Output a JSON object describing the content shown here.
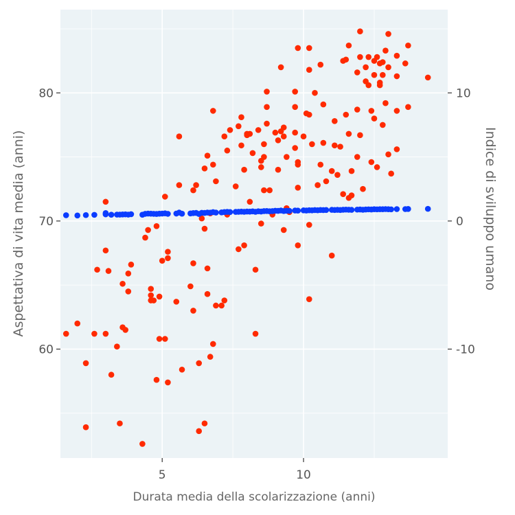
{
  "chart_data": {
    "type": "scatter",
    "xlabel": "Durata media della scolarizzazione (anni)",
    "ylabel": "Aspettativa di vita media (anni)",
    "ylabel_right": "Indice di sviluppo umano",
    "xlim": [
      1.4,
      15.1
    ],
    "ylim": [
      51.5,
      86.5
    ],
    "ylim_right": [
      -18.5,
      16.5
    ],
    "x_ticks": [
      5,
      10
    ],
    "x_tick_labels": [
      "5",
      "10"
    ],
    "y_ticks": [
      60,
      70,
      80
    ],
    "y_tick_labels": [
      "60",
      "70",
      "80"
    ],
    "y_right_ticks": [
      -10,
      0,
      10
    ],
    "y_right_tick_labels": [
      "-10",
      "0",
      "10"
    ],
    "colors": {
      "panel": "#ecf3f6",
      "grid": "#ffffff",
      "life": "#ff2a00",
      "hdi": "#0a3cff"
    },
    "series": [
      {
        "name": "Aspettativa di vita media (anni)",
        "axis": "left",
        "color": "#ff2a00",
        "points": [
          [
            1.6,
            61.2
          ],
          [
            2.0,
            62.0
          ],
          [
            2.3,
            58.9
          ],
          [
            2.3,
            53.9
          ],
          [
            2.6,
            61.2
          ],
          [
            2.7,
            66.2
          ],
          [
            3.0,
            71.5
          ],
          [
            3.0,
            67.7
          ],
          [
            3.0,
            61.2
          ],
          [
            3.1,
            66.1
          ],
          [
            3.2,
            58.0
          ],
          [
            3.4,
            60.2
          ],
          [
            3.5,
            54.2
          ],
          [
            3.6,
            61.7
          ],
          [
            3.6,
            65.1
          ],
          [
            3.7,
            61.5
          ],
          [
            3.8,
            64.5
          ],
          [
            3.8,
            65.9
          ],
          [
            3.9,
            66.6
          ],
          [
            4.3,
            52.6
          ],
          [
            4.4,
            68.7
          ],
          [
            4.5,
            69.3
          ],
          [
            4.6,
            64.2
          ],
          [
            4.6,
            64.7
          ],
          [
            4.6,
            63.8
          ],
          [
            4.7,
            63.8
          ],
          [
            4.8,
            57.6
          ],
          [
            4.8,
            69.6
          ],
          [
            4.9,
            64.1
          ],
          [
            4.9,
            60.8
          ],
          [
            5.0,
            66.9
          ],
          [
            5.1,
            60.8
          ],
          [
            5.1,
            71.9
          ],
          [
            5.2,
            57.4
          ],
          [
            5.2,
            67.6
          ],
          [
            5.2,
            67.1
          ],
          [
            5.5,
            63.7
          ],
          [
            5.6,
            72.8
          ],
          [
            5.6,
            76.6
          ],
          [
            5.7,
            58.4
          ],
          [
            6.0,
            64.9
          ],
          [
            6.1,
            66.7
          ],
          [
            6.1,
            63.0
          ],
          [
            6.1,
            72.4
          ],
          [
            6.2,
            72.8
          ],
          [
            6.3,
            53.6
          ],
          [
            6.3,
            58.9
          ],
          [
            6.4,
            70.2
          ],
          [
            6.5,
            74.1
          ],
          [
            6.5,
            69.4
          ],
          [
            6.5,
            54.2
          ],
          [
            6.6,
            64.3
          ],
          [
            6.6,
            66.3
          ],
          [
            6.6,
            75.1
          ],
          [
            6.7,
            70.6
          ],
          [
            6.7,
            59.4
          ],
          [
            6.8,
            60.4
          ],
          [
            6.8,
            78.6
          ],
          [
            6.8,
            74.4
          ],
          [
            6.9,
            73.1
          ],
          [
            6.9,
            63.4
          ],
          [
            7.1,
            63.4
          ],
          [
            7.2,
            63.8
          ],
          [
            7.2,
            76.6
          ],
          [
            7.3,
            75.5
          ],
          [
            7.3,
            70.5
          ],
          [
            7.4,
            77.1
          ],
          [
            7.6,
            72.7
          ],
          [
            7.7,
            67.8
          ],
          [
            7.7,
            77.4
          ],
          [
            7.8,
            75.9
          ],
          [
            7.8,
            78.1
          ],
          [
            7.9,
            68.1
          ],
          [
            7.9,
            74.0
          ],
          [
            8.0,
            76.7
          ],
          [
            8.0,
            76.8
          ],
          [
            8.1,
            71.5
          ],
          [
            8.1,
            76.8
          ],
          [
            8.2,
            75.3
          ],
          [
            8.3,
            66.2
          ],
          [
            8.3,
            61.2
          ],
          [
            8.4,
            77.1
          ],
          [
            8.5,
            69.8
          ],
          [
            8.5,
            74.2
          ],
          [
            8.5,
            74.7
          ],
          [
            8.6,
            76.0
          ],
          [
            8.6,
            75.0
          ],
          [
            8.6,
            72.4
          ],
          [
            8.7,
            78.9
          ],
          [
            8.7,
            77.6
          ],
          [
            8.7,
            80.1
          ],
          [
            8.8,
            72.4
          ],
          [
            8.9,
            70.5
          ],
          [
            9.0,
            76.9
          ],
          [
            9.1,
            74.0
          ],
          [
            9.1,
            76.3
          ],
          [
            9.2,
            82.0
          ],
          [
            9.2,
            77.0
          ],
          [
            9.3,
            69.3
          ],
          [
            9.3,
            76.6
          ],
          [
            9.3,
            77.3
          ],
          [
            9.4,
            71.0
          ],
          [
            9.4,
            75.0
          ],
          [
            9.5,
            70.7
          ],
          [
            9.7,
            76.9
          ],
          [
            9.7,
            78.9
          ],
          [
            9.7,
            75.7
          ],
          [
            9.7,
            80.1
          ],
          [
            9.8,
            68.1
          ],
          [
            9.8,
            74.4
          ],
          [
            9.8,
            74.6
          ],
          [
            9.8,
            83.5
          ],
          [
            9.8,
            72.6
          ],
          [
            10.0,
            76.6
          ],
          [
            10.1,
            78.4
          ],
          [
            10.2,
            78.3
          ],
          [
            10.2,
            63.9
          ],
          [
            10.2,
            81.8
          ],
          [
            10.2,
            83.5
          ],
          [
            10.2,
            69.7
          ],
          [
            10.3,
            76.0
          ],
          [
            10.4,
            80.0
          ],
          [
            10.5,
            72.8
          ],
          [
            10.6,
            74.4
          ],
          [
            10.6,
            82.2
          ],
          [
            10.7,
            79.1
          ],
          [
            10.7,
            76.1
          ],
          [
            10.8,
            73.1
          ],
          [
            11.0,
            73.9
          ],
          [
            11.0,
            67.3
          ],
          [
            11.1,
            75.9
          ],
          [
            11.1,
            77.8
          ],
          [
            11.2,
            73.6
          ],
          [
            11.3,
            75.8
          ],
          [
            11.4,
            82.5
          ],
          [
            11.4,
            72.1
          ],
          [
            11.5,
            82.6
          ],
          [
            11.5,
            78.3
          ],
          [
            11.6,
            83.7
          ],
          [
            11.6,
            76.8
          ],
          [
            11.6,
            71.8
          ],
          [
            11.7,
            72.0
          ],
          [
            11.7,
            73.9
          ],
          [
            11.9,
            75.0
          ],
          [
            11.9,
            78.7
          ],
          [
            11.9,
            81.6
          ],
          [
            12.0,
            84.8
          ],
          [
            12.0,
            82.8
          ],
          [
            12.0,
            76.7
          ],
          [
            12.1,
            72.5
          ],
          [
            12.2,
            82.0
          ],
          [
            12.2,
            80.9
          ],
          [
            12.3,
            80.6
          ],
          [
            12.3,
            82.8
          ],
          [
            12.4,
            78.6
          ],
          [
            12.4,
            74.6
          ],
          [
            12.5,
            81.4
          ],
          [
            12.5,
            82.5
          ],
          [
            12.5,
            78.0
          ],
          [
            12.6,
            82.8
          ],
          [
            12.6,
            74.2
          ],
          [
            12.7,
            80.6
          ],
          [
            12.7,
            82.3
          ],
          [
            12.7,
            80.8
          ],
          [
            12.8,
            77.5
          ],
          [
            12.8,
            82.4
          ],
          [
            12.8,
            81.4
          ],
          [
            12.9,
            83.3
          ],
          [
            12.9,
            79.2
          ],
          [
            13.0,
            82.0
          ],
          [
            13.0,
            75.2
          ],
          [
            13.0,
            84.6
          ],
          [
            13.1,
            73.7
          ],
          [
            13.3,
            82.9
          ],
          [
            13.3,
            81.3
          ],
          [
            13.3,
            75.6
          ],
          [
            13.3,
            78.6
          ],
          [
            13.6,
            82.3
          ],
          [
            13.7,
            83.7
          ],
          [
            13.7,
            78.9
          ],
          [
            14.4,
            81.2
          ]
        ]
      },
      {
        "name": "Indice di sviluppo umano",
        "axis": "right",
        "color": "#0a3cff",
        "points": [
          [
            1.6,
            0.45
          ],
          [
            2.0,
            0.43
          ],
          [
            2.3,
            0.46
          ],
          [
            2.6,
            0.48
          ],
          [
            3.0,
            0.52
          ],
          [
            3.0,
            0.62
          ],
          [
            3.2,
            0.49
          ],
          [
            3.4,
            0.5
          ],
          [
            3.5,
            0.5
          ],
          [
            3.6,
            0.51
          ],
          [
            3.7,
            0.52
          ],
          [
            3.8,
            0.5
          ],
          [
            3.9,
            0.53
          ],
          [
            4.3,
            0.49
          ],
          [
            4.4,
            0.56
          ],
          [
            4.5,
            0.58
          ],
          [
            4.6,
            0.57
          ],
          [
            4.7,
            0.56
          ],
          [
            4.8,
            0.55
          ],
          [
            4.9,
            0.57
          ],
          [
            5.0,
            0.58
          ],
          [
            5.1,
            0.6
          ],
          [
            5.2,
            0.56
          ],
          [
            5.5,
            0.58
          ],
          [
            5.6,
            0.66
          ],
          [
            5.7,
            0.57
          ],
          [
            6.0,
            0.59
          ],
          [
            6.1,
            0.62
          ],
          [
            6.2,
            0.63
          ],
          [
            6.3,
            0.55
          ],
          [
            6.4,
            0.64
          ],
          [
            6.5,
            0.63
          ],
          [
            6.6,
            0.66
          ],
          [
            6.7,
            0.65
          ],
          [
            6.8,
            0.69
          ],
          [
            6.9,
            0.66
          ],
          [
            7.1,
            0.67
          ],
          [
            7.2,
            0.7
          ],
          [
            7.3,
            0.71
          ],
          [
            7.4,
            0.7
          ],
          [
            7.6,
            0.71
          ],
          [
            7.7,
            0.72
          ],
          [
            7.8,
            0.73
          ],
          [
            7.9,
            0.72
          ],
          [
            8.0,
            0.74
          ],
          [
            8.1,
            0.73
          ],
          [
            8.2,
            0.75
          ],
          [
            8.3,
            0.72
          ],
          [
            8.4,
            0.76
          ],
          [
            8.5,
            0.74
          ],
          [
            8.6,
            0.77
          ],
          [
            8.7,
            0.78
          ],
          [
            8.8,
            0.76
          ],
          [
            8.9,
            0.77
          ],
          [
            9.0,
            0.8
          ],
          [
            9.1,
            0.79
          ],
          [
            9.2,
            0.82
          ],
          [
            9.3,
            0.78
          ],
          [
            9.4,
            0.8
          ],
          [
            9.5,
            0.79
          ],
          [
            9.7,
            0.82
          ],
          [
            9.8,
            0.81
          ],
          [
            10.0,
            0.83
          ],
          [
            10.1,
            0.82
          ],
          [
            10.2,
            0.84
          ],
          [
            10.3,
            0.83
          ],
          [
            10.4,
            0.85
          ],
          [
            10.5,
            0.84
          ],
          [
            10.6,
            0.86
          ],
          [
            10.7,
            0.85
          ],
          [
            10.8,
            0.86
          ],
          [
            11.0,
            0.87
          ],
          [
            11.1,
            0.86
          ],
          [
            11.2,
            0.87
          ],
          [
            11.3,
            0.86
          ],
          [
            11.4,
            0.88
          ],
          [
            11.5,
            0.89
          ],
          [
            11.6,
            0.88
          ],
          [
            11.7,
            0.87
          ],
          [
            11.9,
            0.89
          ],
          [
            12.0,
            0.9
          ],
          [
            12.1,
            0.88
          ],
          [
            12.2,
            0.9
          ],
          [
            12.3,
            0.91
          ],
          [
            12.4,
            0.9
          ],
          [
            12.5,
            0.92
          ],
          [
            12.6,
            0.91
          ],
          [
            12.7,
            0.92
          ],
          [
            12.8,
            0.92
          ],
          [
            12.9,
            0.93
          ],
          [
            13.0,
            0.92
          ],
          [
            13.1,
            0.91
          ],
          [
            13.3,
            0.93
          ],
          [
            13.6,
            0.93
          ],
          [
            13.7,
            0.94
          ],
          [
            14.4,
            0.95
          ]
        ]
      }
    ]
  }
}
